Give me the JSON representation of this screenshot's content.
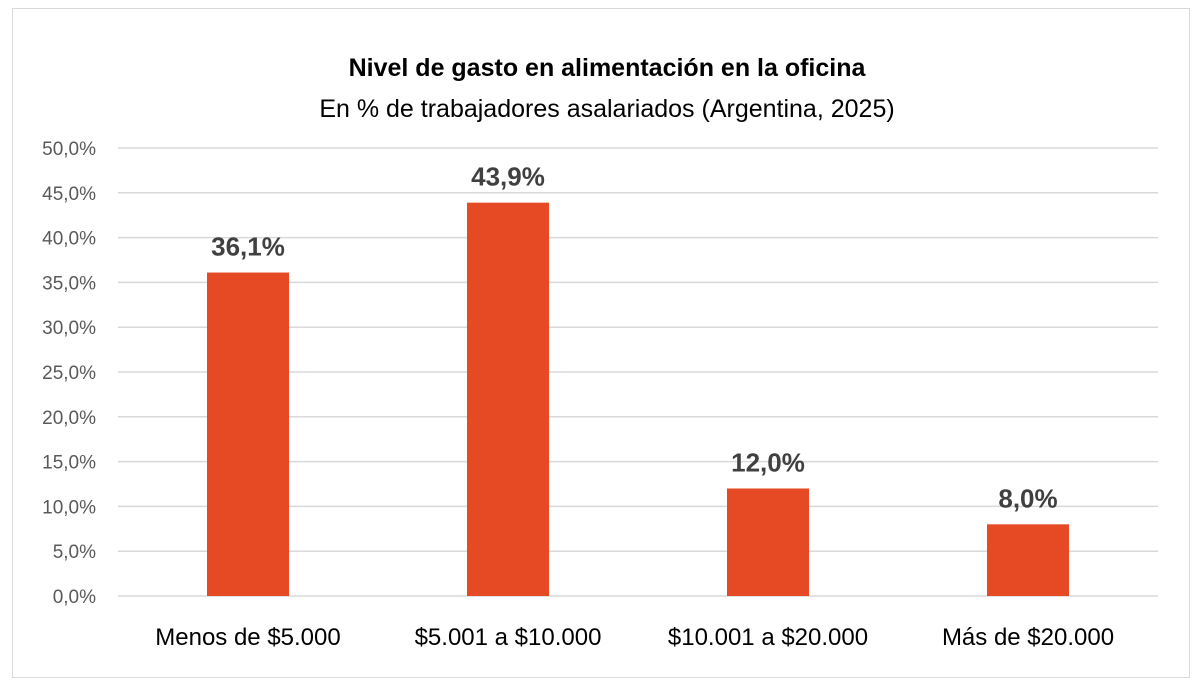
{
  "chart_data": {
    "type": "bar",
    "title": "Nivel de gasto en alimentación en la oficina",
    "subtitle": "En % de trabajadores asalariados (Argentina, 2025)",
    "categories": [
      "Menos de $5.000",
      "$5.001 a $10.000",
      "$10.001 a $20.000",
      "Más de $20.000"
    ],
    "values": [
      36.1,
      43.9,
      12.0,
      8.0
    ],
    "data_labels": [
      "36,1%",
      "43,9%",
      "12,0%",
      "8,0%"
    ],
    "yticks": [
      "0,0%",
      "5,0%",
      "10,0%",
      "15,0%",
      "20,0%",
      "25,0%",
      "30,0%",
      "35,0%",
      "40,0%",
      "45,0%",
      "50,0%"
    ],
    "ylim": [
      0,
      50
    ],
    "xlabel": "",
    "ylabel": "",
    "grid": true,
    "bar_color": "#E64A24"
  }
}
